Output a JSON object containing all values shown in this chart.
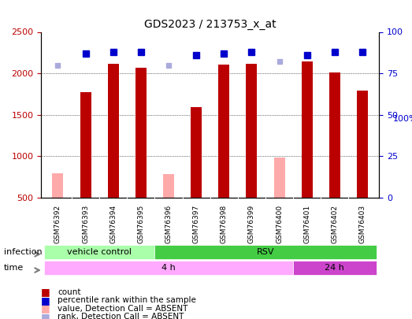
{
  "title": "GDS2023 / 213753_x_at",
  "samples": [
    "GSM76392",
    "GSM76393",
    "GSM76394",
    "GSM76395",
    "GSM76396",
    "GSM76397",
    "GSM76398",
    "GSM76399",
    "GSM76400",
    "GSM76401",
    "GSM76402",
    "GSM76403"
  ],
  "count_values": [
    null,
    1775,
    2120,
    2065,
    null,
    1590,
    2105,
    2120,
    null,
    2145,
    2015,
    1790
  ],
  "count_absent": [
    800,
    null,
    null,
    null,
    790,
    null,
    null,
    null,
    990,
    null,
    null,
    null
  ],
  "rank_values": [
    null,
    87,
    88,
    88,
    null,
    86,
    87,
    88,
    null,
    86,
    88,
    88
  ],
  "rank_absent": [
    80,
    null,
    null,
    null,
    80,
    null,
    null,
    null,
    82,
    null,
    null,
    null
  ],
  "count_color": "#bb0000",
  "count_absent_color": "#ffaaaa",
  "rank_color": "#0000cc",
  "rank_absent_color": "#aaaadd",
  "ylim_left": [
    500,
    2500
  ],
  "ylim_right": [
    0,
    100
  ],
  "yticks_left": [
    500,
    1000,
    1500,
    2000,
    2500
  ],
  "yticks_right": [
    0,
    25,
    50,
    75,
    100
  ],
  "infection_groups": [
    {
      "label": "vehicle control",
      "start": 0,
      "end": 3,
      "color": "#aaffaa"
    },
    {
      "label": "RSV",
      "start": 4,
      "end": 11,
      "color": "#44cc44"
    }
  ],
  "time_groups": [
    {
      "label": "4 h",
      "start": 0,
      "end": 8,
      "color": "#ffaaff"
    },
    {
      "label": "24 h",
      "start": 9,
      "end": 11,
      "color": "#cc44cc"
    }
  ],
  "bg_color": "#dddddd",
  "plot_bg": "#ffffff",
  "grid_color": "#000000",
  "border_color": "#000000"
}
